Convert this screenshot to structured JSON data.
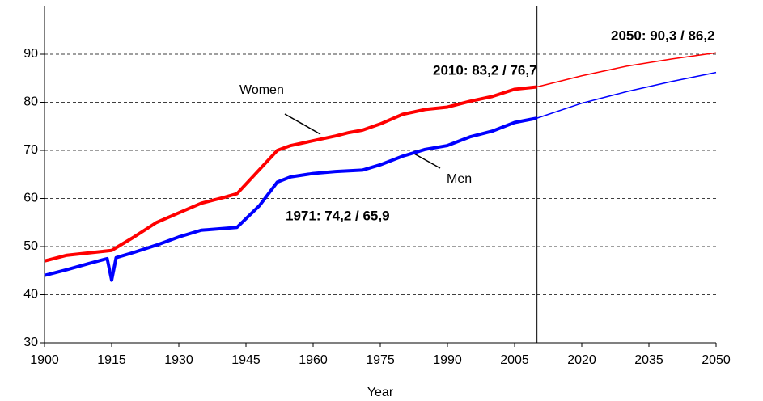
{
  "chart_data": {
    "type": "line",
    "x_label": "Year",
    "xlim": [
      1900,
      2050
    ],
    "xticks": [
      1900,
      1915,
      1930,
      1945,
      1960,
      1975,
      1990,
      2005,
      2020,
      2035,
      2050
    ],
    "ylim": [
      30,
      100
    ],
    "yticks": [
      30,
      40,
      50,
      60,
      70,
      80,
      90
    ],
    "grid": true,
    "vline": 2010,
    "series": [
      {
        "name": "Women",
        "color": "#ff0000",
        "x": [
          1900,
          1905,
          1910,
          1915,
          1920,
          1925,
          1930,
          1935,
          1940,
          1943,
          1948,
          1952,
          1955,
          1960,
          1965,
          1968,
          1971,
          1975,
          1980,
          1985,
          1990,
          1995,
          2000,
          2005,
          2010,
          2020,
          2030,
          2040,
          2050
        ],
        "values": [
          47,
          48.2,
          48.7,
          49.2,
          52,
          55,
          57,
          59,
          60.2,
          61,
          66,
          70,
          71,
          72,
          73,
          73.7,
          74.2,
          75.5,
          77.5,
          78.5,
          79,
          80.2,
          81.2,
          82.7,
          83.2,
          85.5,
          87.5,
          89,
          90.3
        ]
      },
      {
        "name": "Men",
        "color": "#0000ff",
        "x": [
          1900,
          1905,
          1910,
          1914,
          1915,
          1916,
          1920,
          1925,
          1930,
          1935,
          1943,
          1948,
          1952,
          1955,
          1960,
          1965,
          1971,
          1975,
          1980,
          1985,
          1990,
          1995,
          2000,
          2005,
          2010,
          2020,
          2030,
          2040,
          2050
        ],
        "values": [
          44,
          45.2,
          46.5,
          47.5,
          43,
          47.7,
          48.8,
          50.3,
          52,
          53.4,
          54,
          58.5,
          63.4,
          64.5,
          65.2,
          65.6,
          65.9,
          67,
          68.8,
          70.2,
          71,
          72.8,
          74,
          75.8,
          76.7,
          79.8,
          82.2,
          84.3,
          86.2
        ]
      }
    ],
    "annotations": [
      "2050: 90,3 / 86,2",
      "2010: 83,2 / 76,7",
      "1971: 74,2 / 65,9"
    ]
  }
}
